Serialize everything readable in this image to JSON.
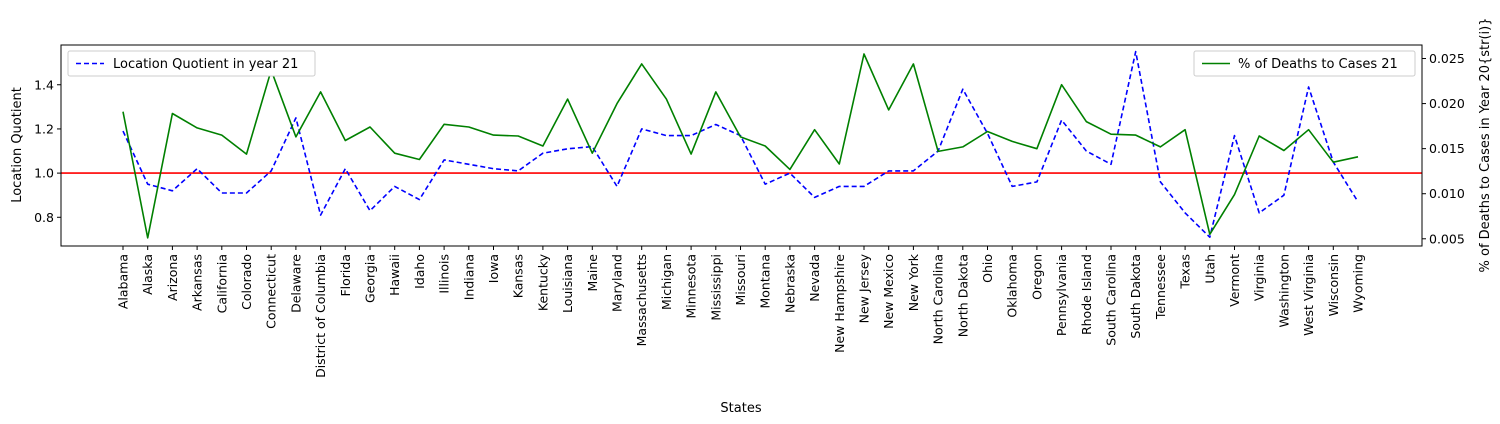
{
  "chart_data": {
    "type": "line",
    "xlabel": "States",
    "ylabel_left": "Location Quotient",
    "ylabel_right": "% of Deaths to Cases in Year 20{str(i)}",
    "ylim_left": [
      0.67,
      1.58
    ],
    "ylim_right": [
      0.0042,
      0.0265
    ],
    "yticks_left": [
      "0.8",
      "1.0",
      "1.2",
      "1.4"
    ],
    "yticks_right": [
      "0.005",
      "0.010",
      "0.015",
      "0.020",
      "0.025"
    ],
    "reference_line": {
      "axis": "left",
      "value": 1.0,
      "color": "#ff0000"
    },
    "categories": [
      "Alabama",
      "Alaska",
      "Arizona",
      "Arkansas",
      "California",
      "Colorado",
      "Connecticut",
      "Delaware",
      "District of Columbia",
      "Florida",
      "Georgia",
      "Hawaii",
      "Idaho",
      "Illinois",
      "Indiana",
      "Iowa",
      "Kansas",
      "Kentucky",
      "Louisiana",
      "Maine",
      "Maryland",
      "Massachusetts",
      "Michigan",
      "Minnesota",
      "Mississippi",
      "Missouri",
      "Montana",
      "Nebraska",
      "Nevada",
      "New Hampshire",
      "New Jersey",
      "New Mexico",
      "New York",
      "North Carolina",
      "North Dakota",
      "Ohio",
      "Oklahoma",
      "Oregon",
      "Pennsylvania",
      "Rhode Island",
      "South Carolina",
      "South Dakota",
      "Tennessee",
      "Texas",
      "Utah",
      "Vermont",
      "Virginia",
      "Washington",
      "West Virginia",
      "Wisconsin",
      "Wyoming"
    ],
    "series": [
      {
        "name": "Location Quotient in year 21",
        "axis": "left",
        "color": "#0000ff",
        "style": "dashed",
        "values": [
          1.19,
          0.95,
          0.92,
          1.02,
          0.91,
          0.91,
          1.01,
          1.25,
          0.81,
          1.02,
          0.83,
          0.94,
          0.88,
          1.06,
          1.04,
          1.02,
          1.01,
          1.09,
          1.11,
          1.12,
          0.94,
          1.2,
          1.17,
          1.17,
          1.22,
          1.17,
          0.95,
          1.0,
          0.89,
          0.94,
          0.94,
          1.01,
          1.01,
          1.1,
          1.38,
          1.18,
          0.94,
          0.96,
          1.24,
          1.1,
          1.04,
          1.55,
          0.96,
          0.82,
          0.71,
          1.17,
          0.82,
          0.9,
          1.39,
          1.05,
          0.87
        ]
      },
      {
        "name": "% of Deaths to Cases 21",
        "axis": "right",
        "color": "#008000",
        "style": "solid",
        "values": [
          0.0191,
          0.0051,
          0.0189,
          0.0173,
          0.0165,
          0.0144,
          0.0237,
          0.0163,
          0.0213,
          0.0159,
          0.0174,
          0.0145,
          0.0138,
          0.0177,
          0.0174,
          0.0165,
          0.0164,
          0.0153,
          0.0205,
          0.0145,
          0.02,
          0.0244,
          0.0205,
          0.0144,
          0.0213,
          0.0163,
          0.0153,
          0.0127,
          0.0171,
          0.0133,
          0.0255,
          0.0193,
          0.0244,
          0.0147,
          0.0152,
          0.0169,
          0.0158,
          0.015,
          0.0221,
          0.018,
          0.0166,
          0.0165,
          0.0152,
          0.0171,
          0.0055,
          0.0099,
          0.0164,
          0.0148,
          0.0171,
          0.0135,
          0.0141
        ]
      }
    ]
  }
}
